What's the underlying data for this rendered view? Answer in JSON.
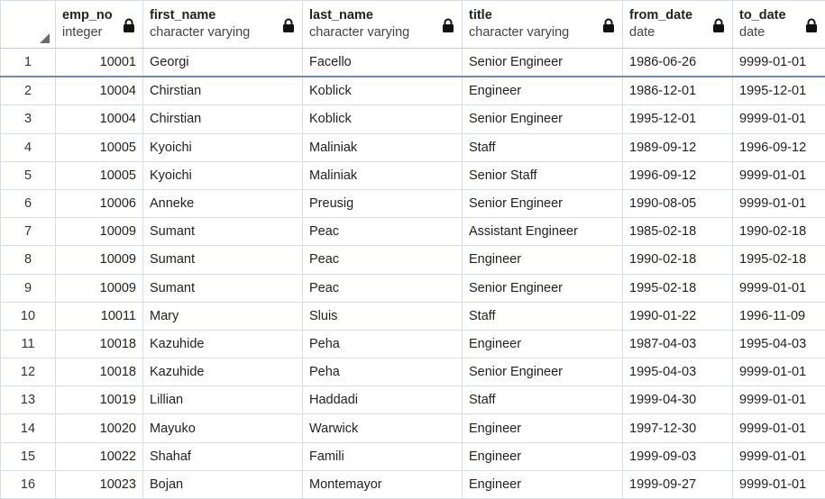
{
  "columns": [
    {
      "name": "emp_no",
      "type": "integer"
    },
    {
      "name": "first_name",
      "type": "character varying"
    },
    {
      "name": "last_name",
      "type": "character varying"
    },
    {
      "name": "title",
      "type": "character varying"
    },
    {
      "name": "from_date",
      "type": "date"
    },
    {
      "name": "to_date",
      "type": "date"
    }
  ],
  "rows": [
    {
      "n": "1",
      "emp_no": "10001",
      "first_name": "Georgi",
      "last_name": "Facello",
      "title": "Senior Engineer",
      "from_date": "1986-06-26",
      "to_date": "9999-01-01"
    },
    {
      "n": "2",
      "emp_no": "10004",
      "first_name": "Chirstian",
      "last_name": "Koblick",
      "title": "Engineer",
      "from_date": "1986-12-01",
      "to_date": "1995-12-01"
    },
    {
      "n": "3",
      "emp_no": "10004",
      "first_name": "Chirstian",
      "last_name": "Koblick",
      "title": "Senior Engineer",
      "from_date": "1995-12-01",
      "to_date": "9999-01-01"
    },
    {
      "n": "4",
      "emp_no": "10005",
      "first_name": "Kyoichi",
      "last_name": "Maliniak",
      "title": "Staff",
      "from_date": "1989-09-12",
      "to_date": "1996-09-12"
    },
    {
      "n": "5",
      "emp_no": "10005",
      "first_name": "Kyoichi",
      "last_name": "Maliniak",
      "title": "Senior Staff",
      "from_date": "1996-09-12",
      "to_date": "9999-01-01"
    },
    {
      "n": "6",
      "emp_no": "10006",
      "first_name": "Anneke",
      "last_name": "Preusig",
      "title": "Senior Engineer",
      "from_date": "1990-08-05",
      "to_date": "9999-01-01"
    },
    {
      "n": "7",
      "emp_no": "10009",
      "first_name": "Sumant",
      "last_name": "Peac",
      "title": "Assistant Engineer",
      "from_date": "1985-02-18",
      "to_date": "1990-02-18"
    },
    {
      "n": "8",
      "emp_no": "10009",
      "first_name": "Sumant",
      "last_name": "Peac",
      "title": "Engineer",
      "from_date": "1990-02-18",
      "to_date": "1995-02-18"
    },
    {
      "n": "9",
      "emp_no": "10009",
      "first_name": "Sumant",
      "last_name": "Peac",
      "title": "Senior Engineer",
      "from_date": "1995-02-18",
      "to_date": "9999-01-01"
    },
    {
      "n": "10",
      "emp_no": "10011",
      "first_name": "Mary",
      "last_name": "Sluis",
      "title": "Staff",
      "from_date": "1990-01-22",
      "to_date": "1996-11-09"
    },
    {
      "n": "11",
      "emp_no": "10018",
      "first_name": "Kazuhide",
      "last_name": "Peha",
      "title": "Engineer",
      "from_date": "1987-04-03",
      "to_date": "1995-04-03"
    },
    {
      "n": "12",
      "emp_no": "10018",
      "first_name": "Kazuhide",
      "last_name": "Peha",
      "title": "Senior Engineer",
      "from_date": "1995-04-03",
      "to_date": "9999-01-01"
    },
    {
      "n": "13",
      "emp_no": "10019",
      "first_name": "Lillian",
      "last_name": "Haddadi",
      "title": "Staff",
      "from_date": "1999-04-30",
      "to_date": "9999-01-01"
    },
    {
      "n": "14",
      "emp_no": "10020",
      "first_name": "Mayuko",
      "last_name": "Warwick",
      "title": "Engineer",
      "from_date": "1997-12-30",
      "to_date": "9999-01-01"
    },
    {
      "n": "15",
      "emp_no": "10022",
      "first_name": "Shahaf",
      "last_name": "Famili",
      "title": "Engineer",
      "from_date": "1999-09-03",
      "to_date": "9999-01-01"
    },
    {
      "n": "16",
      "emp_no": "10023",
      "first_name": "Bojan",
      "last_name": "Montemayor",
      "title": "Engineer",
      "from_date": "1999-09-27",
      "to_date": "9999-01-01"
    }
  ]
}
